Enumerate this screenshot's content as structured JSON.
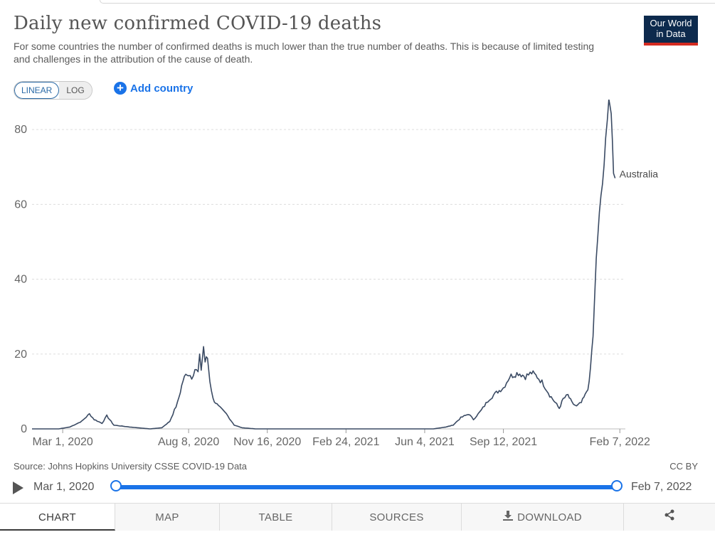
{
  "header": {
    "title": "Daily new confirmed COVID-19 deaths",
    "subtitle": "For some countries the number of confirmed deaths is much lower than the true number of deaths. This is because of limited testing and challenges in the attribution of the cause of death.",
    "logo_line1": "Our World",
    "logo_line2": "in Data"
  },
  "controls": {
    "linear_label": "LINEAR",
    "log_label": "LOG",
    "active_scale": "LINEAR",
    "add_country_label": "Add country"
  },
  "chart_data": {
    "type": "line",
    "title": "Daily new confirmed COVID-19 deaths",
    "xlabel": "",
    "ylabel": "",
    "ylim": [
      0,
      88
    ],
    "xlim": [
      "2020-01-22",
      "2022-02-14"
    ],
    "y_ticks": [
      0,
      20,
      40,
      60,
      80
    ],
    "x_ticks": [
      {
        "date": "2020-03-01",
        "label": "Mar 1, 2020"
      },
      {
        "date": "2020-08-08",
        "label": "Aug 8, 2020"
      },
      {
        "date": "2020-11-16",
        "label": "Nov 16, 2020"
      },
      {
        "date": "2021-02-24",
        "label": "Feb 24, 2021"
      },
      {
        "date": "2021-06-04",
        "label": "Jun 4, 2021"
      },
      {
        "date": "2021-09-12",
        "label": "Sep 12, 2021"
      },
      {
        "date": "2022-02-07",
        "label": "Feb 7, 2022"
      }
    ],
    "grid": "horizontal dashed",
    "series": [
      {
        "name": "Australia",
        "color": "#3a4a63",
        "points": [
          [
            "2020-01-22",
            0
          ],
          [
            "2020-02-25",
            0
          ],
          [
            "2020-03-10",
            0.5
          ],
          [
            "2020-03-25",
            2
          ],
          [
            "2020-04-04",
            4
          ],
          [
            "2020-04-10",
            2.5
          ],
          [
            "2020-04-20",
            1.5
          ],
          [
            "2020-04-26",
            3.5
          ],
          [
            "2020-05-05",
            1
          ],
          [
            "2020-05-25",
            0.5
          ],
          [
            "2020-06-20",
            0
          ],
          [
            "2020-07-05",
            0.3
          ],
          [
            "2020-07-15",
            2
          ],
          [
            "2020-07-25",
            7
          ],
          [
            "2020-08-01",
            13
          ],
          [
            "2020-08-06",
            15
          ],
          [
            "2020-08-12",
            14
          ],
          [
            "2020-08-16",
            16
          ],
          [
            "2020-08-20",
            15
          ],
          [
            "2020-08-22",
            19
          ],
          [
            "2020-08-24",
            16
          ],
          [
            "2020-08-27",
            22
          ],
          [
            "2020-08-29",
            18
          ],
          [
            "2020-09-01",
            19
          ],
          [
            "2020-09-04",
            13
          ],
          [
            "2020-09-08",
            8
          ],
          [
            "2020-09-15",
            6
          ],
          [
            "2020-09-25",
            4
          ],
          [
            "2020-10-05",
            1
          ],
          [
            "2020-10-15",
            0.3
          ],
          [
            "2020-11-01",
            0
          ],
          [
            "2021-06-15",
            0
          ],
          [
            "2021-07-01",
            0.5
          ],
          [
            "2021-07-10",
            1
          ],
          [
            "2021-07-20",
            3
          ],
          [
            "2021-07-30",
            4
          ],
          [
            "2021-08-05",
            2.5
          ],
          [
            "2021-08-15",
            5
          ],
          [
            "2021-08-25",
            8
          ],
          [
            "2021-09-05",
            10
          ],
          [
            "2021-09-12",
            11
          ],
          [
            "2021-09-20",
            14
          ],
          [
            "2021-10-01",
            15
          ],
          [
            "2021-10-10",
            14
          ],
          [
            "2021-10-18",
            15
          ],
          [
            "2021-10-25",
            14
          ],
          [
            "2021-11-02",
            12
          ],
          [
            "2021-11-10",
            9
          ],
          [
            "2021-11-17",
            7
          ],
          [
            "2021-11-22",
            5.5
          ],
          [
            "2021-11-27",
            8
          ],
          [
            "2021-12-03",
            9
          ],
          [
            "2021-12-08",
            7
          ],
          [
            "2021-12-14",
            6
          ],
          [
            "2021-12-20",
            7
          ],
          [
            "2021-12-25",
            9
          ],
          [
            "2021-12-30",
            12
          ],
          [
            "2022-01-04",
            25
          ],
          [
            "2022-01-08",
            45
          ],
          [
            "2022-01-12",
            58
          ],
          [
            "2022-01-16",
            65
          ],
          [
            "2022-01-20",
            78
          ],
          [
            "2022-01-24",
            87
          ],
          [
            "2022-01-27",
            85
          ],
          [
            "2022-01-30",
            69
          ],
          [
            "2022-02-01",
            67
          ]
        ]
      }
    ],
    "series_label": "Australia"
  },
  "footer": {
    "source": "Source: Johns Hopkins University CSSE COVID-19 Data",
    "license": "CC BY"
  },
  "timeline": {
    "start_label": "Mar 1, 2020",
    "end_label": "Feb 7, 2022"
  },
  "tabs": [
    {
      "label": "CHART",
      "active": true
    },
    {
      "label": "MAP"
    },
    {
      "label": "TABLE"
    },
    {
      "label": "SOURCES"
    },
    {
      "label": "DOWNLOAD",
      "icon": "download-icon"
    },
    {
      "label": "",
      "icon": "share-icon"
    }
  ]
}
